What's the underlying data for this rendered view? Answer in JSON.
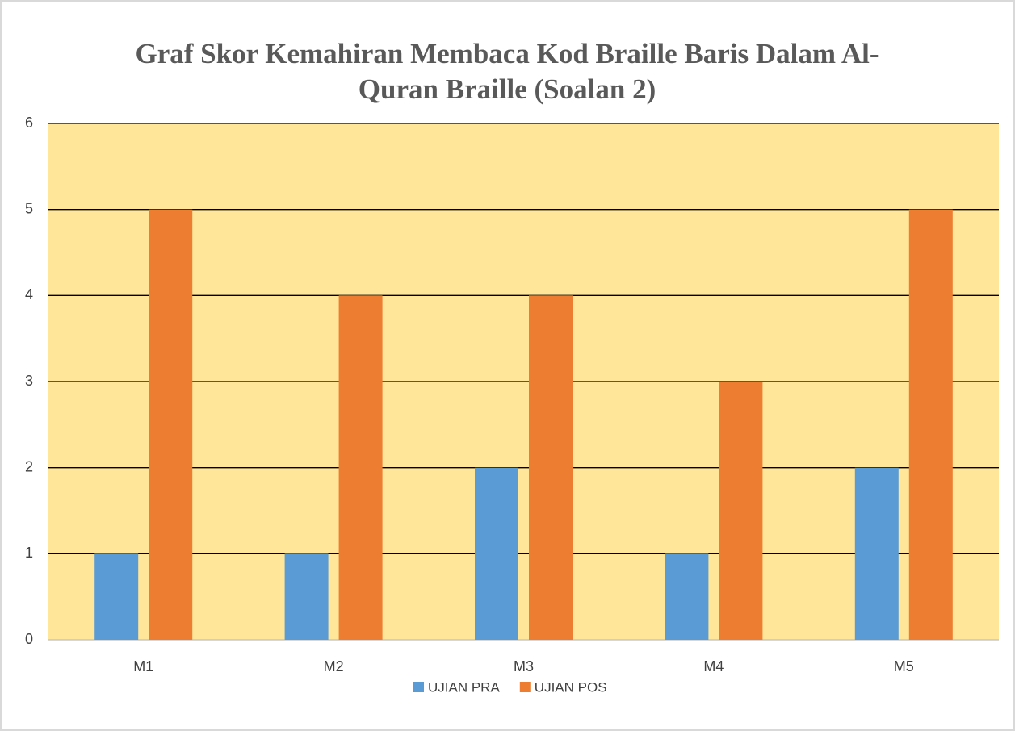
{
  "chart_data": {
    "type": "bar",
    "title": [
      "Graf Skor Kemahiran Membaca Kod Braille Baris Dalam Al-",
      "Quran Braille (Soalan 2)"
    ],
    "categories": [
      "M1",
      "M2",
      "M3",
      "M4",
      "M5"
    ],
    "series": [
      {
        "name": "UJIAN PRA",
        "color": "#5b9bd5",
        "values": [
          1,
          1,
          2,
          1,
          2
        ]
      },
      {
        "name": "UJIAN POS",
        "color": "#ed7d31",
        "values": [
          5,
          4,
          4,
          3,
          5
        ]
      }
    ],
    "ylim": [
      0,
      6
    ],
    "yticks": [
      0,
      1,
      2,
      3,
      4,
      5,
      6
    ],
    "grid": true,
    "plot_background": "#ffe699",
    "legend": "bottom"
  }
}
